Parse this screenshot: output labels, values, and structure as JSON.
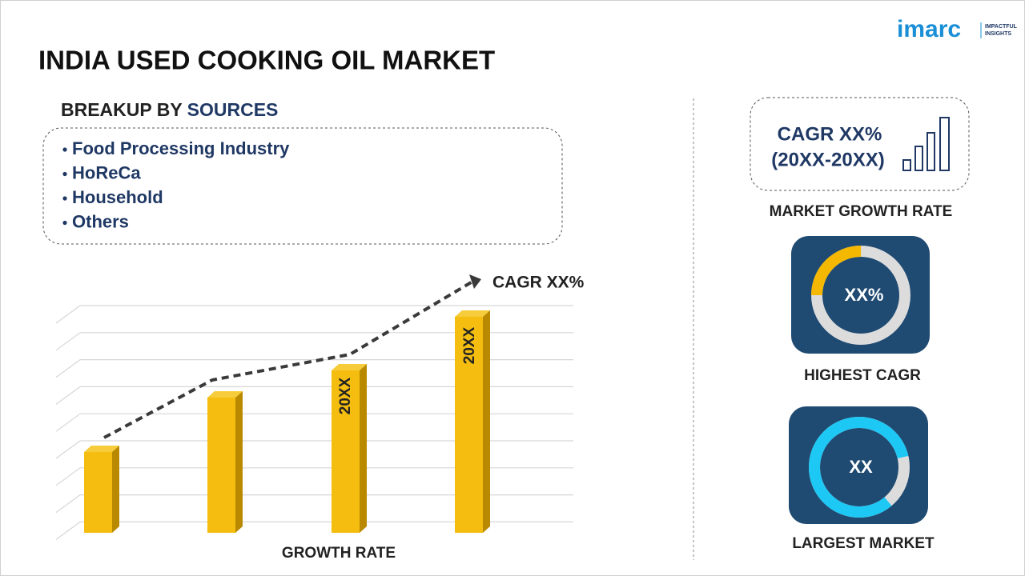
{
  "brand": {
    "name": "imarc",
    "tagline": [
      "IMPACTFUL",
      "INSIGHTS"
    ]
  },
  "title": "INDIA USED COOKING OIL MARKET",
  "breakup": {
    "heading_prefix": "BREAKUP BY",
    "heading_highlight": "SOURCES",
    "items": [
      "Food Processing Industry",
      "HoReCa",
      "Household",
      "Others"
    ]
  },
  "growth_chart": {
    "cagr_label": "CAGR XX%",
    "bar_labels": [
      "20XX",
      "20XX"
    ],
    "axis_label": "GROWTH RATE"
  },
  "stats": [
    {
      "value_lines": [
        "CAGR XX%",
        "(20XX-20XX)"
      ],
      "label": "MARKET GROWTH RATE"
    },
    {
      "value": "XX%",
      "label": "HIGHEST CAGR"
    },
    {
      "value": "XX",
      "label": "LARGEST MARKET"
    }
  ]
}
